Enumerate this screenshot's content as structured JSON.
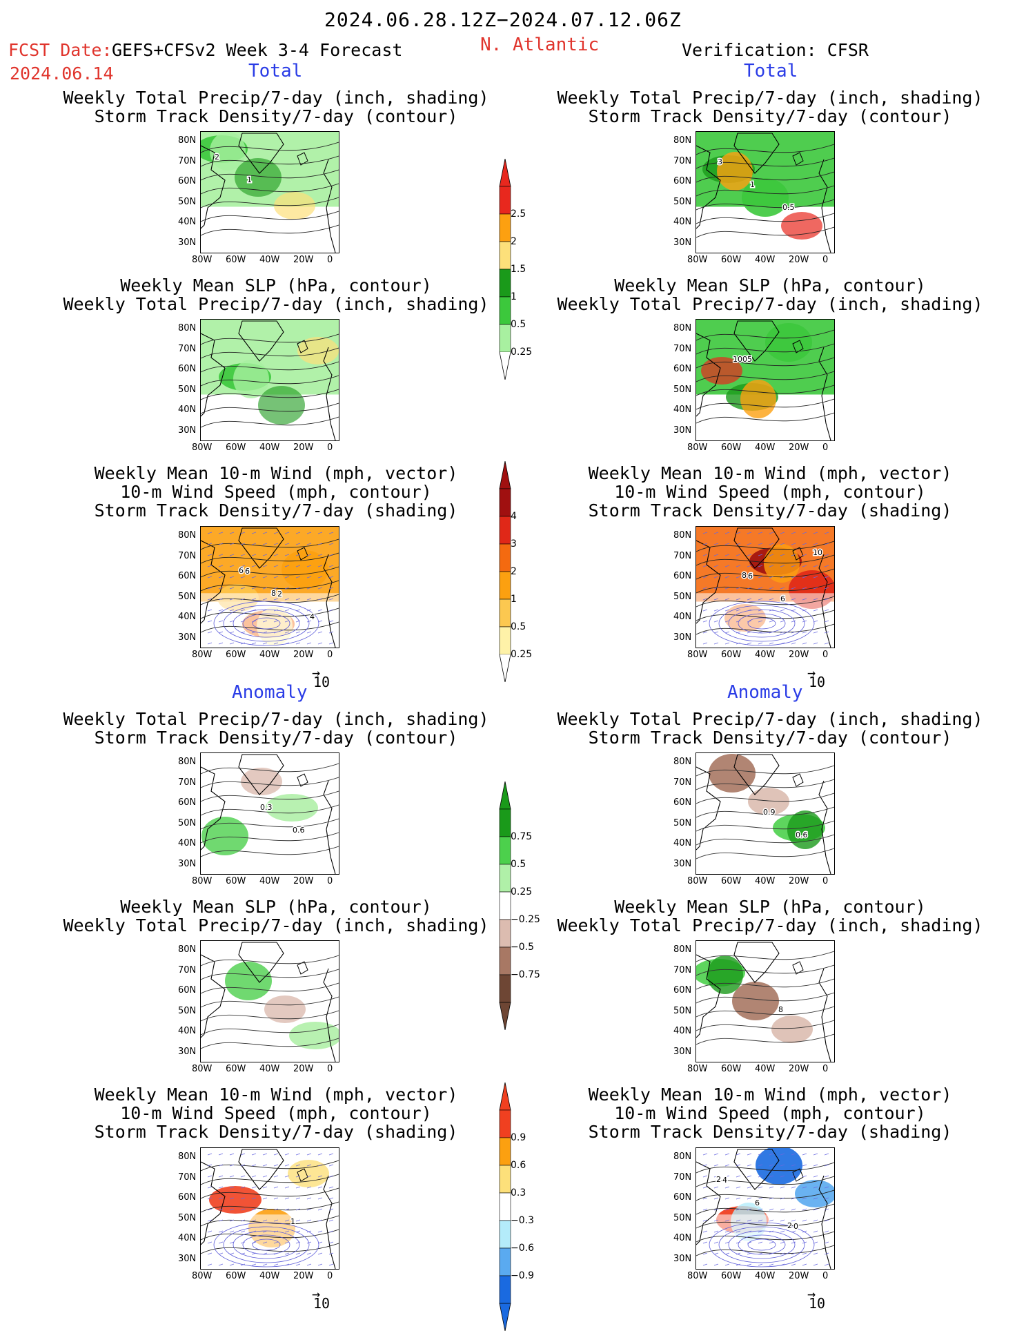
{
  "header": {
    "period": "2024.06.28.12Z−2024.07.12.06Z",
    "fcst_label": "FCST Date:",
    "model": "GEFS+CFSv2 Week 3-4 Forecast",
    "fcst_date": "2024.06.14",
    "region": "N. Atlantic",
    "verification": "Verification: CFSR"
  },
  "sections": {
    "total": "Total",
    "anomaly": "Anomaly"
  },
  "titles": {
    "precip_storm": [
      "Weekly Total Precip/7-day (inch, shading)",
      "Storm Track Density/7-day (contour)"
    ],
    "slp_precip": [
      "Weekly Mean SLP (hPa, contour)",
      "Weekly Total Precip/7-day (inch, shading)"
    ],
    "wind_storm": [
      "Weekly Mean 10-m Wind (mph, vector)",
      "10-m Wind Speed (mph, contour)",
      "Storm Track Density/7-day (shading)"
    ]
  },
  "axes": {
    "lat": [
      "80N",
      "70N",
      "60N",
      "50N",
      "40N",
      "30N"
    ],
    "lon": [
      "80W",
      "60W",
      "40W",
      "20W",
      "0"
    ]
  },
  "vector_ref": "10",
  "colorbars": {
    "precip_total": {
      "labels": [
        "2.5",
        "2",
        "1.5",
        "1",
        "0.5",
        "0.25"
      ],
      "colors": [
        "#e8281e",
        "#fda010",
        "#fde07a",
        "#1a9a1a",
        "#3cc83c",
        "#a8f0a0"
      ]
    },
    "storm_total": {
      "labels": [
        "4",
        "3",
        "2",
        "1",
        "0.5",
        "0.25"
      ],
      "colors": [
        "#a01010",
        "#e02818",
        "#f46a10",
        "#fca010",
        "#fcc850",
        "#fef2a8"
      ]
    },
    "precip_anom": {
      "labels": [
        "0.75",
        "0.5",
        "0.25",
        "−0.25",
        "−0.5",
        "−0.75"
      ],
      "colors": [
        "#1a9a1a",
        "#4cd04c",
        "#b0f0a8",
        "#ffffff",
        "#dcbcb0",
        "#a87864",
        "#6e4634"
      ]
    },
    "storm_anom": {
      "labels": [
        "0.9",
        "0.6",
        "0.3",
        "−0.3",
        "−0.6",
        "−0.9"
      ],
      "colors": [
        "#f04020",
        "#fca010",
        "#fde07a",
        "#ffffff",
        "#b4ecfa",
        "#5aaaf0",
        "#1a6ae0"
      ]
    }
  },
  "contour_labels": {
    "L_precip_total": [
      "2",
      "1"
    ],
    "R_precip_total": [
      "3",
      "1",
      "0.5"
    ],
    "R_slp_total": [
      "1005"
    ],
    "L_wind_total": [
      "6",
      "2",
      "4",
      "6",
      "8"
    ],
    "R_wind_total": [
      "6",
      "6",
      "10",
      "8"
    ],
    "L_precip_anom": [
      "0.3",
      "0.6"
    ],
    "R_precip_anom": [
      "0.9",
      "0.6"
    ],
    "R_slp_anom": [
      "8"
    ],
    "L_wind_anom": [
      "1"
    ],
    "R_wind_anom": [
      "0",
      "4",
      "6",
      "2",
      "2"
    ]
  }
}
